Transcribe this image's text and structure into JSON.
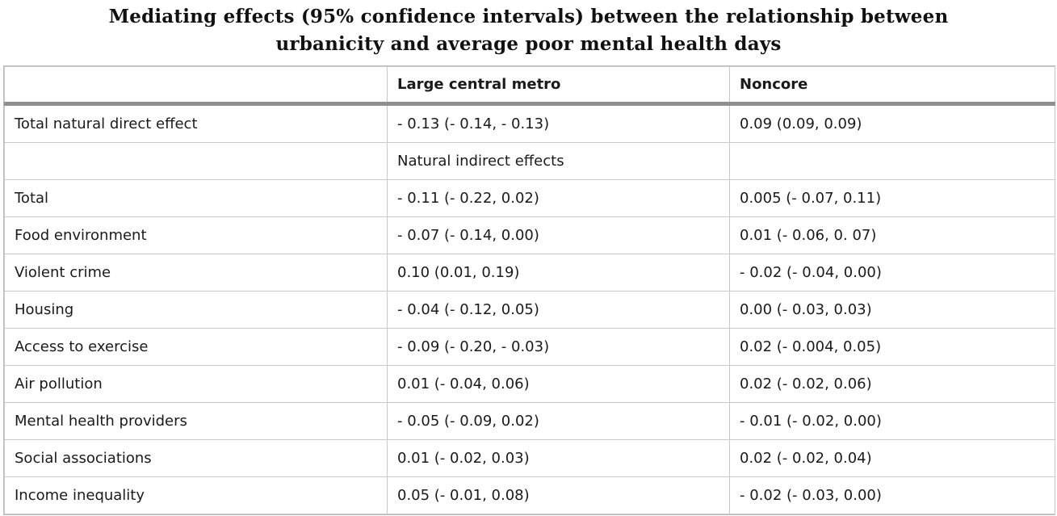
{
  "title": {
    "line1": "Mediating effects (95% confidence intervals) between the relationship between",
    "line2": "urbanicity and average poor mental health days"
  },
  "table": {
    "headers": [
      "",
      "Large central metro",
      "Noncore"
    ],
    "rows": [
      [
        "Total natural direct effect",
        "- 0.13 (- 0.14, - 0.13)",
        "0.09 (0.09, 0.09)"
      ],
      [
        "",
        "Natural indirect effects",
        ""
      ],
      [
        "Total",
        "- 0.11 (- 0.22, 0.02)",
        "0.005 (- 0.07, 0.11)"
      ],
      [
        "Food environment",
        "- 0.07 (- 0.14, 0.00)",
        "0.01 (- 0.06, 0. 07)"
      ],
      [
        "Violent crime",
        "0.10 (0.01, 0.19)",
        "- 0.02 (- 0.04, 0.00)"
      ],
      [
        "Housing",
        "- 0.04 (- 0.12, 0.05)",
        "0.00 (- 0.03, 0.03)"
      ],
      [
        "Access to exercise",
        "- 0.09 (- 0.20, - 0.03)",
        "0.02 (- 0.004, 0.05)"
      ],
      [
        "Air pollution",
        "0.01 (- 0.04, 0.06)",
        "0.02 (- 0.02, 0.06)"
      ],
      [
        "Mental health providers",
        "- 0.05 (- 0.09, 0.02)",
        "- 0.01 (- 0.02, 0.00)"
      ],
      [
        "Social associations",
        "0.01 (- 0.02, 0.03)",
        "0.02 (- 0.02, 0.04)"
      ],
      [
        "Income inequality",
        "0.05 (- 0.01, 0.08)",
        "- 0.02 (- 0.03, 0.00)"
      ]
    ]
  }
}
